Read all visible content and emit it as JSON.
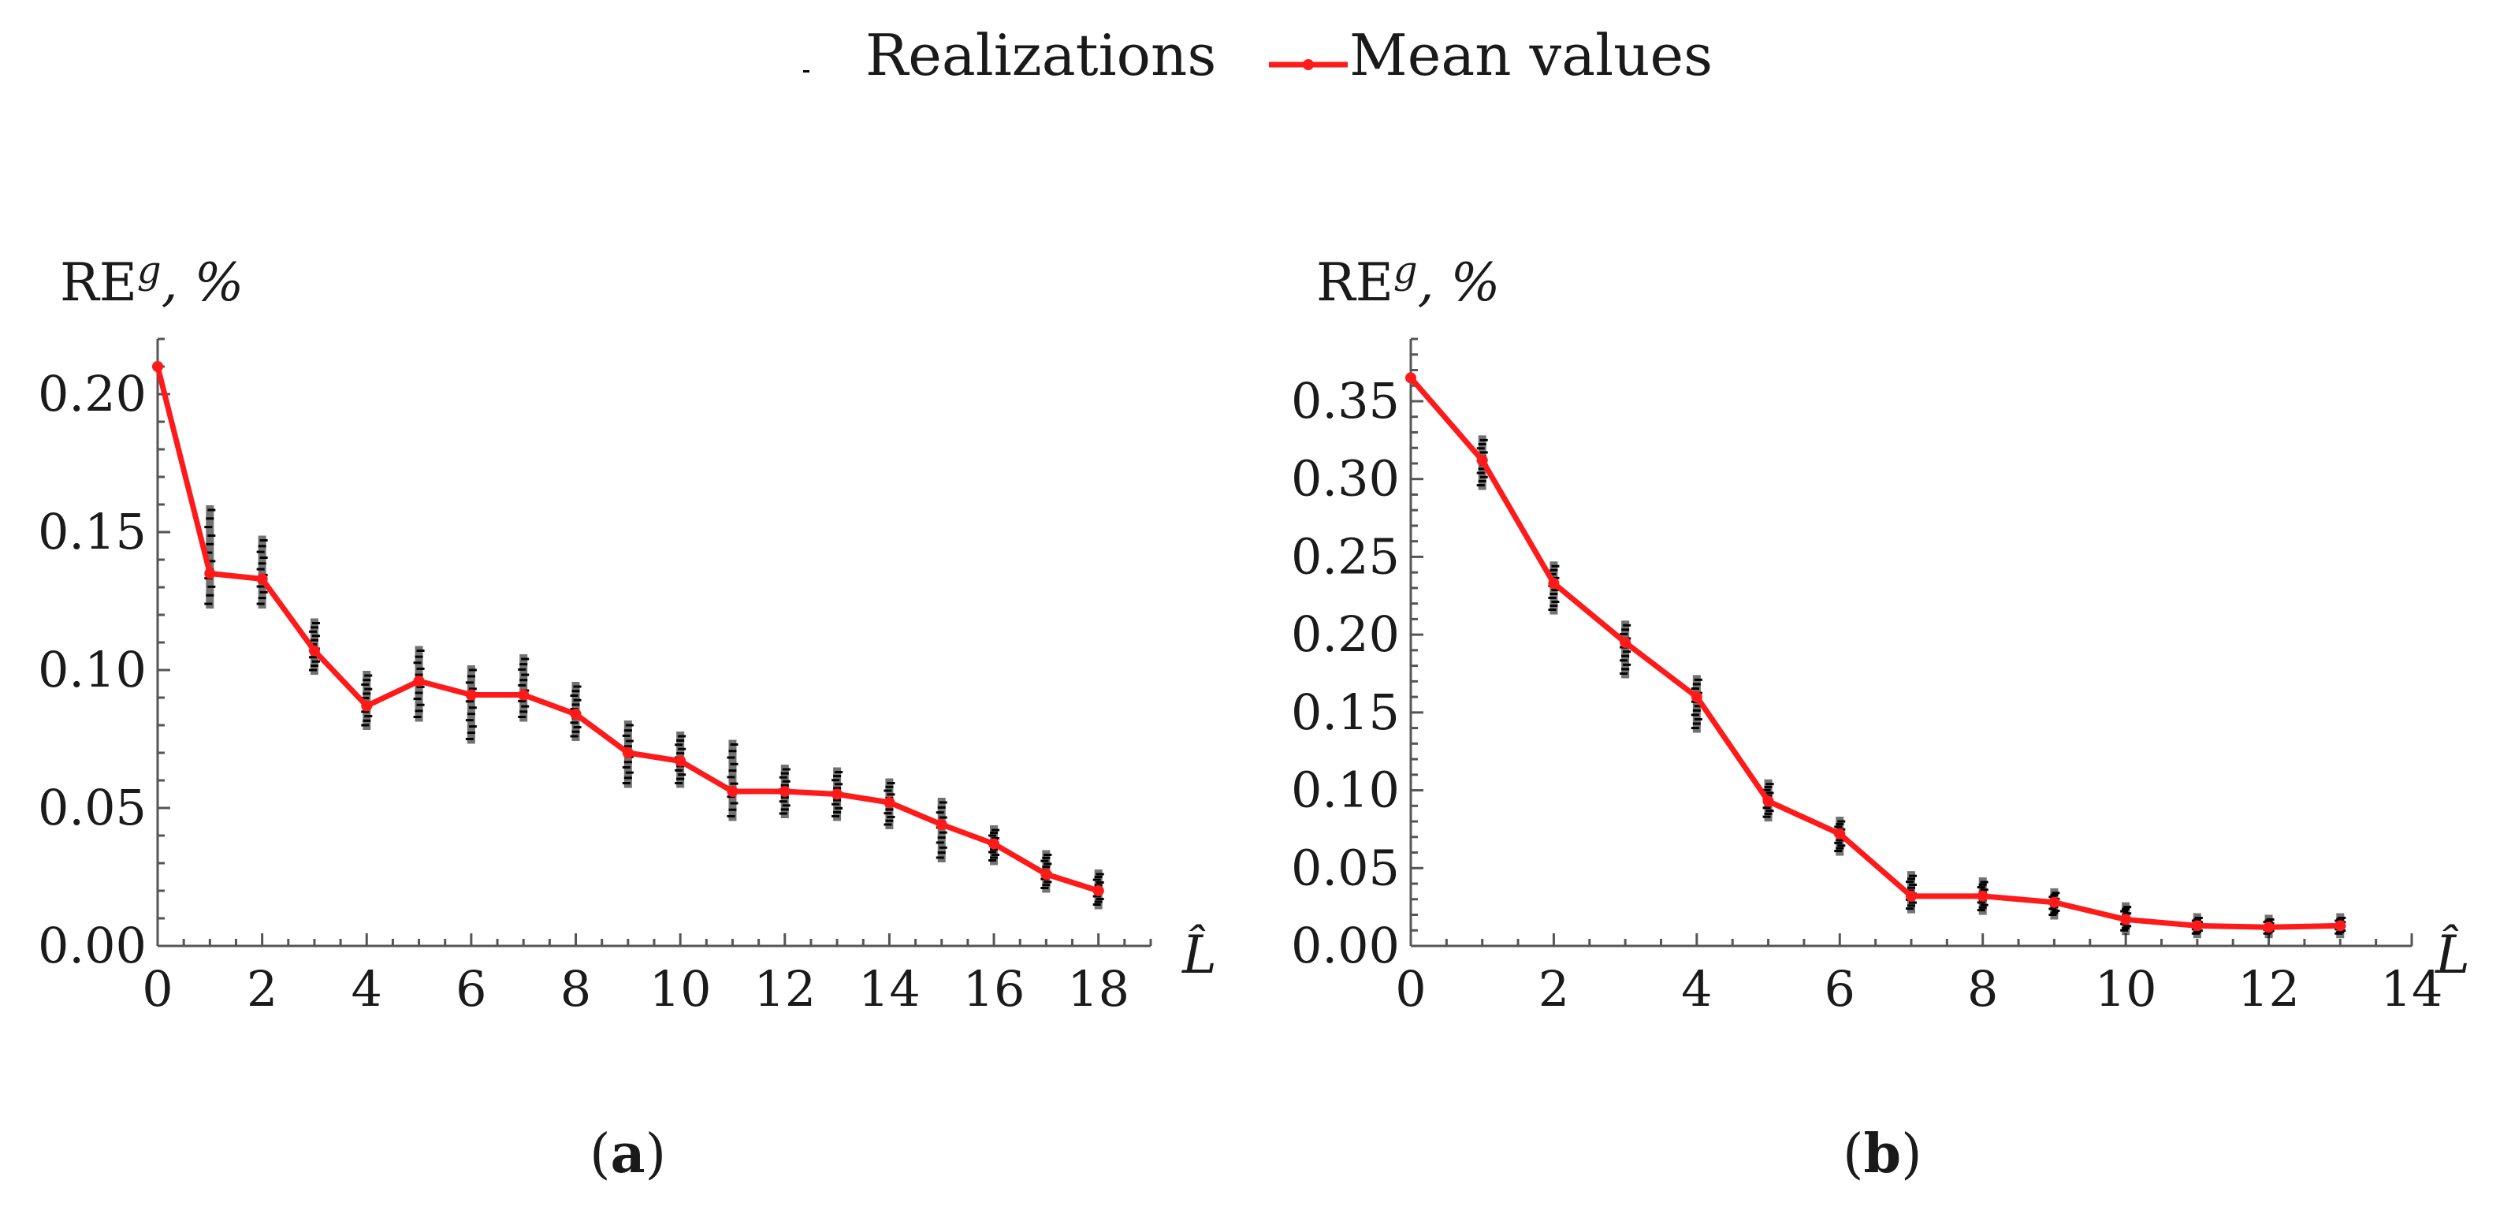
{
  "legend": {
    "realizations_label": "Realizations",
    "mean_label": "Mean values",
    "mean_color": "#ff1a1a",
    "realization_color": "#000000"
  },
  "chart_data": [
    {
      "type": "line",
      "panel_label": "a",
      "ylabel_base": "RE",
      "ylabel_sup": "g",
      "ylabel_suffix": ", %",
      "xlabel": "L̂",
      "xlim": [
        0,
        19
      ],
      "ylim": [
        0,
        0.22
      ],
      "xticks": [
        0,
        2,
        4,
        6,
        8,
        10,
        12,
        14,
        16,
        18
      ],
      "yticks": [
        0.0,
        0.05,
        0.1,
        0.15,
        0.2
      ],
      "ytick_labels": [
        "0.00",
        "0.05",
        "0.10",
        "0.15",
        "0.20"
      ],
      "series": [
        {
          "name": "Mean values",
          "x": [
            0,
            1,
            2,
            3,
            4,
            5,
            6,
            7,
            8,
            9,
            10,
            11,
            12,
            13,
            14,
            15,
            16,
            17,
            18
          ],
          "values": [
            0.21,
            0.135,
            0.133,
            0.107,
            0.087,
            0.096,
            0.091,
            0.091,
            0.084,
            0.07,
            0.067,
            0.056,
            0.056,
            0.055,
            0.052,
            0.044,
            0.037,
            0.026,
            0.02
          ]
        },
        {
          "name": "Realizations",
          "x": [
            1,
            2,
            3,
            4,
            5,
            6,
            7,
            8,
            9,
            10,
            11,
            12,
            13,
            14,
            15,
            16,
            17,
            18
          ],
          "low": [
            0.124,
            0.124,
            0.1,
            0.08,
            0.083,
            0.075,
            0.083,
            0.076,
            0.059,
            0.059,
            0.047,
            0.048,
            0.047,
            0.044,
            0.032,
            0.031,
            0.021,
            0.015
          ],
          "high": [
            0.158,
            0.147,
            0.117,
            0.098,
            0.107,
            0.1,
            0.104,
            0.094,
            0.08,
            0.076,
            0.073,
            0.064,
            0.063,
            0.059,
            0.052,
            0.042,
            0.033,
            0.026
          ]
        }
      ]
    },
    {
      "type": "line",
      "panel_label": "b",
      "ylabel_base": "RE",
      "ylabel_sup": "g",
      "ylabel_suffix": ", %",
      "xlabel": "L̂",
      "xlim": [
        0,
        14
      ],
      "ylim": [
        0,
        0.39
      ],
      "xticks": [
        0,
        2,
        4,
        6,
        8,
        10,
        12,
        14
      ],
      "yticks": [
        0.0,
        0.05,
        0.1,
        0.15,
        0.2,
        0.25,
        0.3,
        0.35
      ],
      "ytick_labels": [
        "0.00",
        "0.05",
        "0.10",
        "0.15",
        "0.20",
        "0.25",
        "0.30",
        "0.35"
      ],
      "series": [
        {
          "name": "Mean values",
          "x": [
            0,
            1,
            2,
            3,
            4,
            5,
            6,
            7,
            8,
            9,
            10,
            11,
            12,
            13
          ],
          "values": [
            0.365,
            0.312,
            0.233,
            0.195,
            0.16,
            0.093,
            0.072,
            0.032,
            0.032,
            0.028,
            0.017,
            0.013,
            0.012,
            0.013
          ]
        },
        {
          "name": "Realizations",
          "x": [
            1,
            2,
            3,
            4,
            5,
            6,
            7,
            8,
            9,
            10,
            11,
            12,
            13
          ],
          "low": [
            0.296,
            0.216,
            0.175,
            0.14,
            0.083,
            0.061,
            0.024,
            0.023,
            0.02,
            0.01,
            0.008,
            0.008,
            0.008
          ],
          "high": [
            0.325,
            0.244,
            0.206,
            0.171,
            0.104,
            0.08,
            0.045,
            0.041,
            0.034,
            0.025,
            0.018,
            0.017,
            0.018
          ]
        }
      ]
    }
  ]
}
